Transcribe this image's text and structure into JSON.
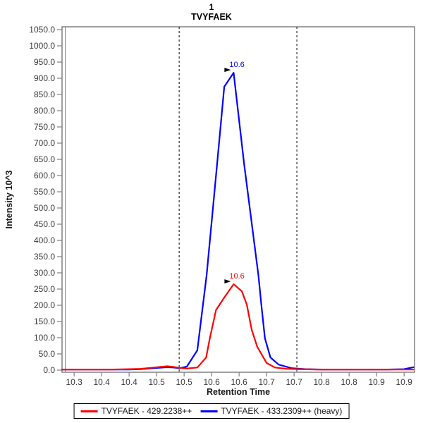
{
  "chart_data": {
    "type": "line",
    "title": "1",
    "subtitle": "TVYFAEK",
    "xlabel": "Retention Time",
    "ylabel": "Intensity 10^3",
    "xlim": [
      10.278,
      10.919
    ],
    "ylim": [
      -6.5,
      1058.7
    ],
    "grid": false,
    "boundaries": [
      10.491,
      10.705
    ],
    "colors": {
      "frame": "#808080",
      "tick_label": "#3a3a3a",
      "boundary_line": "#2b2b2b",
      "annotation_arrow": "#000000",
      "light_series": "#ff0000",
      "heavy_series": "#0000ff"
    },
    "x_ticks": [
      {
        "v": 10.3,
        "label": "10.3"
      },
      {
        "v": 10.35,
        "label": "10.4"
      },
      {
        "v": 10.4,
        "label": "10.4"
      },
      {
        "v": 10.45,
        "label": "10.5"
      },
      {
        "v": 10.5,
        "label": "10.5"
      },
      {
        "v": 10.55,
        "label": "10.6"
      },
      {
        "v": 10.6,
        "label": "10.6"
      },
      {
        "v": 10.65,
        "label": "10.7"
      },
      {
        "v": 10.7,
        "label": "10.7"
      },
      {
        "v": 10.75,
        "label": "10.8"
      },
      {
        "v": 10.8,
        "label": "10.8"
      },
      {
        "v": 10.85,
        "label": "10.9"
      },
      {
        "v": 10.9,
        "label": "10.9"
      }
    ],
    "y_ticks": [
      {
        "v": 0,
        "label": "0.0"
      },
      {
        "v": 50,
        "label": "50.0"
      },
      {
        "v": 100,
        "label": "100.0"
      },
      {
        "v": 150,
        "label": "150.0"
      },
      {
        "v": 200,
        "label": "200.0"
      },
      {
        "v": 250,
        "label": "250.0"
      },
      {
        "v": 300,
        "label": "300.0"
      },
      {
        "v": 350,
        "label": "350.0"
      },
      {
        "v": 400,
        "label": "400.0"
      },
      {
        "v": 450,
        "label": "450.0"
      },
      {
        "v": 500,
        "label": "500.0"
      },
      {
        "v": 550,
        "label": "550.0"
      },
      {
        "v": 600,
        "label": "600.0"
      },
      {
        "v": 650,
        "label": "650.0"
      },
      {
        "v": 700,
        "label": "700.0"
      },
      {
        "v": 750,
        "label": "750.0"
      },
      {
        "v": 800,
        "label": "800.0"
      },
      {
        "v": 850,
        "label": "850.0"
      },
      {
        "v": 900,
        "label": "900.0"
      },
      {
        "v": 950,
        "label": "950.0"
      },
      {
        "v": 1000,
        "label": "1000.0"
      },
      {
        "v": 1050,
        "label": "1050.0"
      }
    ],
    "series": [
      {
        "name": "TVYFAEK - 429.2238++",
        "color": "#ff0000",
        "annotation": {
          "rt": 10.59,
          "intensity": 265,
          "label": "10.6"
        },
        "points": [
          [
            10.278,
            2
          ],
          [
            10.31,
            2
          ],
          [
            10.34,
            2
          ],
          [
            10.37,
            2
          ],
          [
            10.4,
            3
          ],
          [
            10.42,
            4
          ],
          [
            10.445,
            8
          ],
          [
            10.469,
            12
          ],
          [
            10.48,
            10
          ],
          [
            10.492,
            7
          ],
          [
            10.505,
            5
          ],
          [
            10.524,
            8
          ],
          [
            10.54,
            39
          ],
          [
            10.547,
            100
          ],
          [
            10.558,
            185
          ],
          [
            10.573,
            224
          ],
          [
            10.59,
            265
          ],
          [
            10.605,
            243
          ],
          [
            10.614,
            202
          ],
          [
            10.623,
            124
          ],
          [
            10.633,
            72
          ],
          [
            10.65,
            22
          ],
          [
            10.665,
            8
          ],
          [
            10.687,
            4
          ],
          [
            10.71,
            3
          ],
          [
            10.74,
            2
          ],
          [
            10.78,
            2
          ],
          [
            10.82,
            2
          ],
          [
            10.86,
            2
          ],
          [
            10.9,
            2
          ],
          [
            10.917,
            2
          ]
        ]
      },
      {
        "name": "TVYFAEK - 433.2309++ (heavy)",
        "color": "#0000ff",
        "annotation": {
          "rt": 10.59,
          "intensity": 917,
          "label": "10.6"
        },
        "points": [
          [
            10.278,
            2
          ],
          [
            10.31,
            2
          ],
          [
            10.34,
            2
          ],
          [
            10.37,
            2
          ],
          [
            10.4,
            2
          ],
          [
            10.42,
            3
          ],
          [
            10.445,
            6
          ],
          [
            10.469,
            9
          ],
          [
            10.48,
            8
          ],
          [
            10.492,
            6
          ],
          [
            10.505,
            11
          ],
          [
            10.524,
            61
          ],
          [
            10.541,
            293
          ],
          [
            10.56,
            637
          ],
          [
            10.573,
            874
          ],
          [
            10.59,
            917
          ],
          [
            10.609,
            637
          ],
          [
            10.635,
            293
          ],
          [
            10.641,
            191
          ],
          [
            10.647,
            98
          ],
          [
            10.657,
            39
          ],
          [
            10.672,
            17
          ],
          [
            10.695,
            6
          ],
          [
            10.72,
            3
          ],
          [
            10.75,
            2
          ],
          [
            10.79,
            2
          ],
          [
            10.83,
            2
          ],
          [
            10.87,
            2
          ],
          [
            10.9,
            3
          ],
          [
            10.917,
            9
          ]
        ]
      }
    ],
    "legend": {
      "entries": [
        {
          "label": "TVYFAEK - 429.2238++",
          "color": "#ff0000"
        },
        {
          "label": "TVYFAEK - 433.2309++ (heavy)",
          "color": "#0000ff"
        }
      ]
    }
  }
}
